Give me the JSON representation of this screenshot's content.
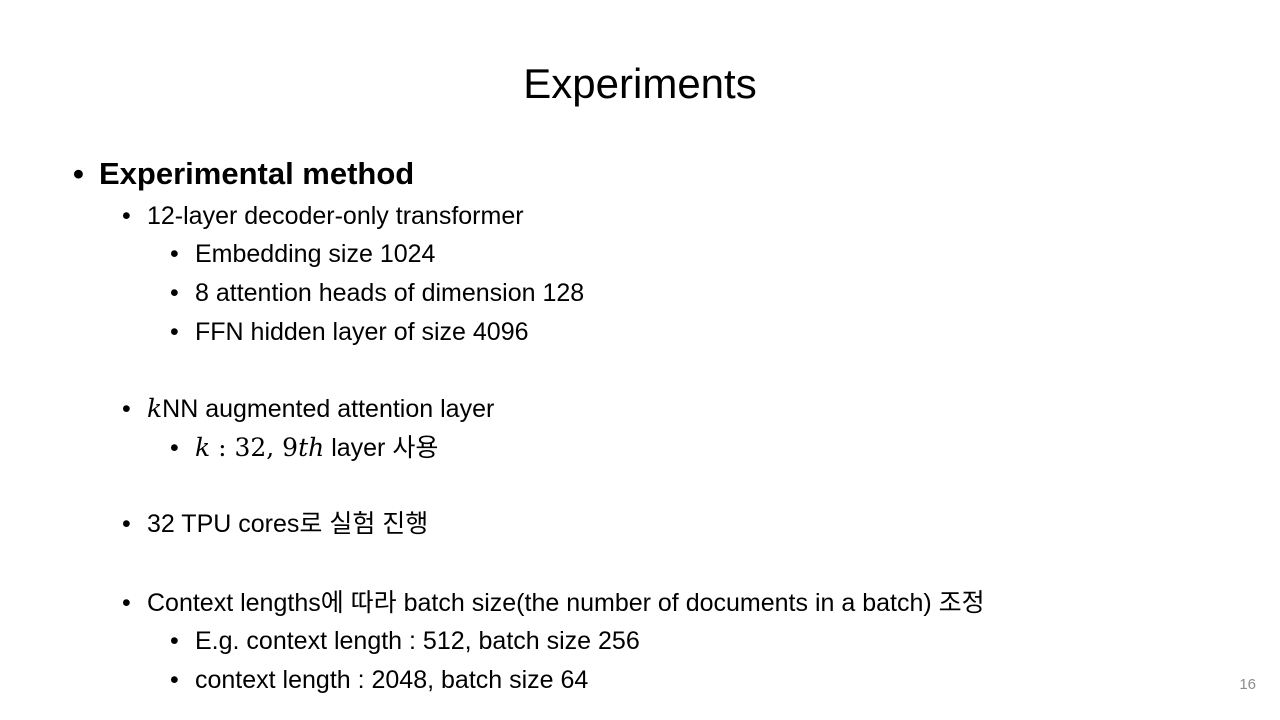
{
  "slide": {
    "title": "Experiments",
    "page_number": "16",
    "bullets": {
      "method": "Experimental method",
      "transformer": "12-layer decoder-only transformer",
      "embedding": "Embedding size 1024",
      "heads": "8 attention heads of dimension 128",
      "ffn": "FFN hidden layer of size 4096",
      "knn_k": "k",
      "knn_rest": "NN augmented attention layer",
      "k_var": "k",
      "k_values": " : 32, 9",
      "k_th": "th",
      "k_rest": " layer 사용",
      "tpu": "32 TPU cores로 실험 진행",
      "context": "Context lengths에 따라 batch size(the number of documents in a batch) 조정",
      "eg1": "E.g. context length : 512, batch size 256",
      "eg2": "context length : 2048, batch size 64"
    },
    "bullet_glyph": "•"
  }
}
